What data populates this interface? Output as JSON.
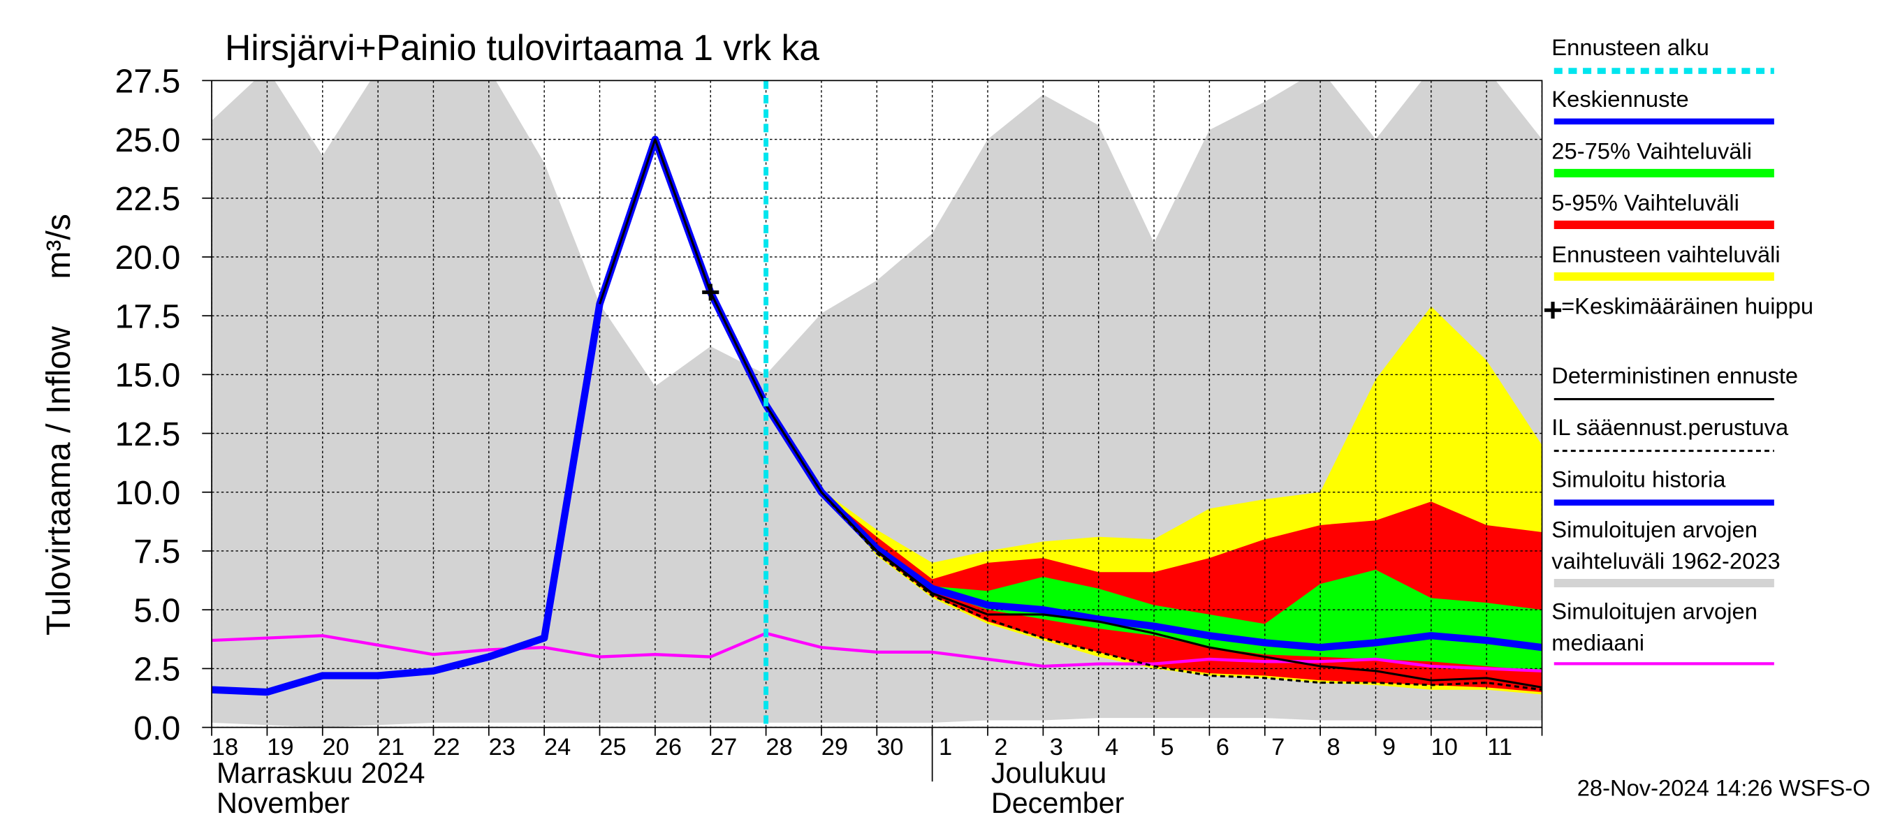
{
  "chart_data": {
    "type": "line",
    "title": "Hirsjärvi+Painio tulovirtaama 1 vrk ka",
    "y_label": "Tulovirtaama / Inflow",
    "y_unit": "m³/s",
    "month_labels": [
      "Marraskuu 2024",
      "November",
      "Joulukuu",
      "December"
    ],
    "footer": "28-Nov-2024 14:26 WSFS-O",
    "categories": [
      "18",
      "19",
      "20",
      "21",
      "22",
      "23",
      "24",
      "25",
      "26",
      "27",
      "28",
      "29",
      "30",
      "1",
      "2",
      "3",
      "4",
      "5",
      "6",
      "7",
      "8",
      "9",
      "10",
      "11",
      null
    ],
    "month_start": "1",
    "forecast_start": "28",
    "ylim": [
      0,
      27.5
    ],
    "yticks": [
      {
        "value": 0,
        "label": "0.0"
      },
      2.5,
      {
        "value": 5,
        "label": "5.0"
      },
      7.5,
      {
        "value": 10,
        "label": "10.0"
      },
      12.5,
      {
        "value": 15,
        "label": "15.0"
      },
      17.5,
      {
        "value": 20,
        "label": "20.0"
      },
      22.5,
      {
        "value": 25,
        "label": "25.0"
      },
      27.5
    ],
    "grid": true,
    "series": [
      {
        "name": "Ennusteen alku",
        "color": "#00e5ee",
        "style": "vline"
      },
      {
        "name": "Keskiennuste",
        "color": "#0000ff",
        "style": "thick",
        "values": [
          null,
          null,
          null,
          null,
          null,
          null,
          null,
          null,
          null,
          null,
          13.7,
          10.0,
          7.6,
          5.9,
          5.2,
          5.0,
          4.6,
          4.3,
          3.9,
          3.6,
          3.4,
          3.6,
          3.9,
          3.7,
          3.4
        ]
      },
      {
        "name": "25-75% Vaihteluväli",
        "color": "#00ff00",
        "style": "band",
        "upper": [
          null,
          null,
          null,
          null,
          null,
          null,
          null,
          null,
          null,
          null,
          13.7,
          10.0,
          7.7,
          6.0,
          5.8,
          6.4,
          5.9,
          5.2,
          4.8,
          4.4,
          6.1,
          6.7,
          5.5,
          5.3,
          5.0
        ],
        "lower": [
          null,
          null,
          null,
          null,
          null,
          null,
          null,
          null,
          null,
          null,
          13.7,
          10.0,
          7.5,
          5.8,
          5.0,
          4.6,
          4.2,
          3.9,
          3.4,
          3.1,
          3.0,
          2.9,
          2.8,
          2.6,
          2.4
        ]
      },
      {
        "name": "5-95% Vaihteluväli",
        "color": "#ff0000",
        "style": "band",
        "upper": [
          null,
          null,
          null,
          null,
          null,
          null,
          null,
          null,
          null,
          null,
          13.7,
          10.0,
          8.1,
          6.3,
          7.0,
          7.2,
          6.6,
          6.6,
          7.2,
          8.0,
          8.6,
          8.8,
          9.6,
          8.6,
          8.3
        ],
        "lower": [
          null,
          null,
          null,
          null,
          null,
          null,
          null,
          null,
          null,
          null,
          13.7,
          10.0,
          7.4,
          5.6,
          4.5,
          3.8,
          3.2,
          2.6,
          2.3,
          2.2,
          2.0,
          1.9,
          1.8,
          1.7,
          1.5
        ]
      },
      {
        "name": "Ennusteen vaihteluväli",
        "color": "#ffff00",
        "style": "band",
        "upper": [
          null,
          null,
          null,
          null,
          null,
          null,
          null,
          null,
          null,
          null,
          13.7,
          10.1,
          8.4,
          7.0,
          7.5,
          7.9,
          8.1,
          8.0,
          9.3,
          9.7,
          10.0,
          14.8,
          17.9,
          15.6,
          12.0
        ],
        "lower": [
          null,
          null,
          null,
          null,
          null,
          null,
          null,
          null,
          null,
          null,
          13.7,
          10.0,
          7.3,
          5.5,
          4.4,
          3.7,
          3.0,
          2.5,
          2.2,
          2.1,
          1.9,
          1.8,
          1.6,
          1.6,
          1.4
        ]
      },
      {
        "name": "=Keskimääräinen huippu",
        "color": "#000000",
        "style": "marker",
        "values": [
          null,
          null,
          null,
          null,
          null,
          null,
          null,
          null,
          null,
          18.5,
          null,
          null,
          null,
          null,
          null,
          null,
          null,
          null,
          null,
          null,
          null,
          null,
          null,
          null,
          null
        ]
      },
      {
        "name": "Deterministinen ennuste",
        "color": "#000000",
        "style": "thin",
        "values": [
          null,
          null,
          null,
          null,
          null,
          null,
          null,
          18.0,
          25.0,
          18.5,
          13.7,
          10.0,
          7.5,
          5.7,
          4.8,
          4.8,
          4.5,
          4.0,
          3.4,
          3.0,
          2.6,
          2.4,
          2.0,
          2.1,
          1.7
        ]
      },
      {
        "name": "IL sääennust.perustuva",
        "color": "#000000",
        "style": "dashed",
        "values": [
          null,
          null,
          null,
          null,
          null,
          null,
          null,
          null,
          null,
          null,
          13.7,
          10.0,
          7.4,
          5.6,
          4.6,
          3.8,
          3.2,
          2.6,
          2.2,
          2.1,
          1.9,
          1.9,
          1.8,
          1.9,
          1.6
        ]
      },
      {
        "name": "Simuloitu historia",
        "color": "#0000ff",
        "style": "thick",
        "values": [
          1.6,
          1.5,
          2.2,
          2.2,
          2.4,
          3.0,
          3.8,
          18.0,
          25.0,
          18.5,
          13.7,
          null,
          null,
          null,
          null,
          null,
          null,
          null,
          null,
          null,
          null,
          null,
          null,
          null,
          null
        ]
      },
      {
        "name": "Simuloitujen arvojen vaihteluväli 1962-2023",
        "color": "#d3d3d3",
        "style": "band",
        "upper": [
          25.8,
          28,
          24.3,
          28,
          28,
          28,
          24.0,
          18.0,
          14.5,
          16.2,
          15.0,
          17.6,
          19.0,
          21.0,
          25.0,
          26.9,
          25.6,
          20.6,
          25.4,
          26.6,
          28,
          25.0,
          28,
          28,
          25.0
        ],
        "lower": [
          0.2,
          0.1,
          0.0,
          0.1,
          0.2,
          0.2,
          0.2,
          0.2,
          0.2,
          0.2,
          0.2,
          0.2,
          0.2,
          0.2,
          0.3,
          0.3,
          0.4,
          0.4,
          0.4,
          0.4,
          0.3,
          0.3,
          0.3,
          0.3,
          0.3
        ]
      },
      {
        "name": "Simuloitujen arvojen mediaani",
        "color": "#ff00ff",
        "style": "medium",
        "values": [
          3.7,
          3.8,
          3.9,
          3.5,
          3.1,
          3.3,
          3.4,
          3.0,
          3.1,
          3.0,
          4.0,
          3.4,
          3.2,
          3.2,
          2.9,
          2.6,
          2.7,
          2.7,
          2.9,
          2.8,
          2.8,
          2.9,
          2.6,
          2.5,
          2.4
        ]
      }
    ]
  }
}
